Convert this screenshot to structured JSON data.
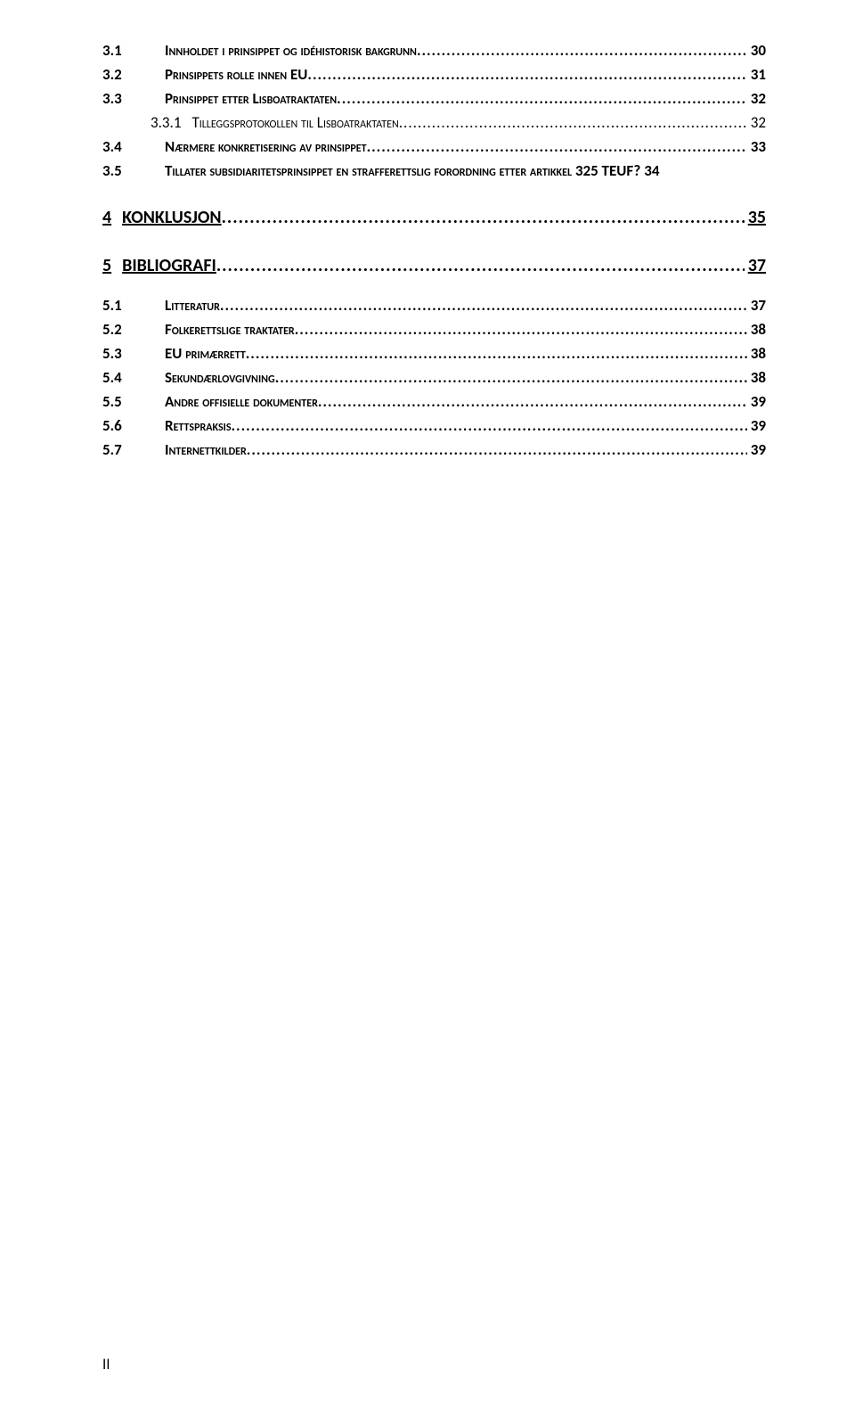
{
  "section3": {
    "items": [
      {
        "num": "3.1",
        "label": "Innholdet i prinsippet og idéhistorisk bakgrunn",
        "page": "30"
      },
      {
        "num": "3.2",
        "label": "Prinsippets rolle innen EU",
        "page": "31"
      },
      {
        "num": "3.3",
        "label": "Prinsippet etter Lisboatraktaten",
        "page": "32"
      },
      {
        "num": "3.3.1",
        "label": "Tilleggsprotokollen til Lisboatraktaten",
        "page": "32",
        "sub": true
      },
      {
        "num": "3.4",
        "label": "Nærmere konkretisering av prinsippet",
        "page": "33"
      },
      {
        "num": "3.5",
        "label": "Tillater subsidiaritetsprinsippet en strafferettslig forordning etter artikkel 325 TEUF?",
        "page": "34"
      }
    ]
  },
  "section4": {
    "num": "4",
    "title": "KONKLUSJON",
    "page": "35"
  },
  "section5": {
    "num": "5",
    "title": "BIBLIOGRAFI",
    "page": "37",
    "items": [
      {
        "num": "5.1",
        "label": "Litteratur",
        "page": "37"
      },
      {
        "num": "5.2",
        "label": "Folkerettslige traktater",
        "page": "38"
      },
      {
        "num": "5.3",
        "label": "EU primærrett",
        "page": "38"
      },
      {
        "num": "5.4",
        "label": "Sekundærlovgivning",
        "page": "38"
      },
      {
        "num": "5.5",
        "label": "Andre offisielle dokumenter",
        "page": "39"
      },
      {
        "num": "5.6",
        "label": "Rettspraksis",
        "page": "39"
      },
      {
        "num": "5.7",
        "label": "Internettkilder",
        "page": "39"
      }
    ]
  },
  "footer": "II",
  "style": {
    "font_main_size": 17,
    "font_heading_size": 20,
    "text_color": "#000000",
    "background_color": "#ffffff"
  }
}
